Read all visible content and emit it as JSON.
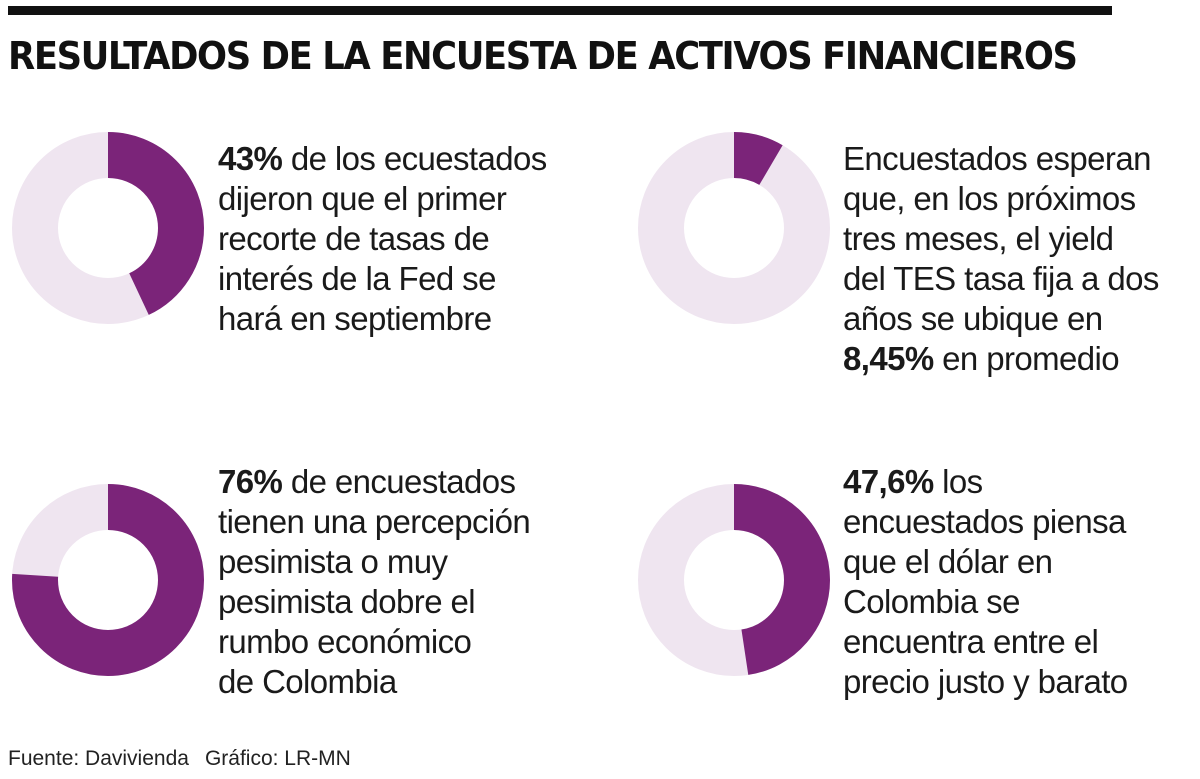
{
  "title": "RESULTADOS DE LA ENCUESTA DE ACTIVOS FINANCIEROS",
  "colors": {
    "highlight": "#7b2479",
    "remainder": "#efe5f0"
  },
  "chart_data": [
    {
      "type": "pie",
      "style": "donut",
      "values": [
        43,
        57
      ],
      "bold": "43%",
      "text": " de los ecuestados dijeron que el primer recorte de tasas de interés de la Fed se hará en septiembre",
      "lines": [
        "de los ecuestados",
        "dijeron que el primer",
        "recorte de tasas de",
        "interés de la Fed se",
        "hará en septiembre"
      ]
    },
    {
      "type": "pie",
      "style": "donut",
      "values": [
        8.45,
        91.55
      ],
      "bold": "8,45%",
      "text": "Encuestados esperan que, en los próximos tres meses, el yield del TES tasa fija a dos años se ubique en 8,45% en promedio",
      "lines": [
        "Encuestados esperan",
        "que, en los próximos",
        "tres meses, el yield",
        "del TES tasa fija a dos",
        "años se ubique en",
        "en promedio"
      ]
    },
    {
      "type": "pie",
      "style": "donut",
      "values": [
        76,
        24
      ],
      "bold": "76%",
      "text": " de encuestados tienen una percepción pesimista o muy pesimista dobre el rumbo económico de Colombia",
      "lines": [
        "de encuestados",
        "tienen una percepción",
        "pesimista o muy",
        "pesimista dobre el",
        "rumbo económico",
        "de Colombia"
      ]
    },
    {
      "type": "pie",
      "style": "donut",
      "values": [
        47.6,
        52.4
      ],
      "bold": "47,6%",
      "text": " los encuestados piensa que el dólar en Colombia se encuentra entre el precio justo y barato",
      "lines": [
        "los",
        "encuestados piensa",
        "que el dólar en",
        "Colombia se",
        "encuentra entre el",
        "precio justo y barato"
      ]
    }
  ],
  "footer": {
    "source": "Fuente: Davivienda",
    "credit": "Gráfico: LR-MN"
  }
}
